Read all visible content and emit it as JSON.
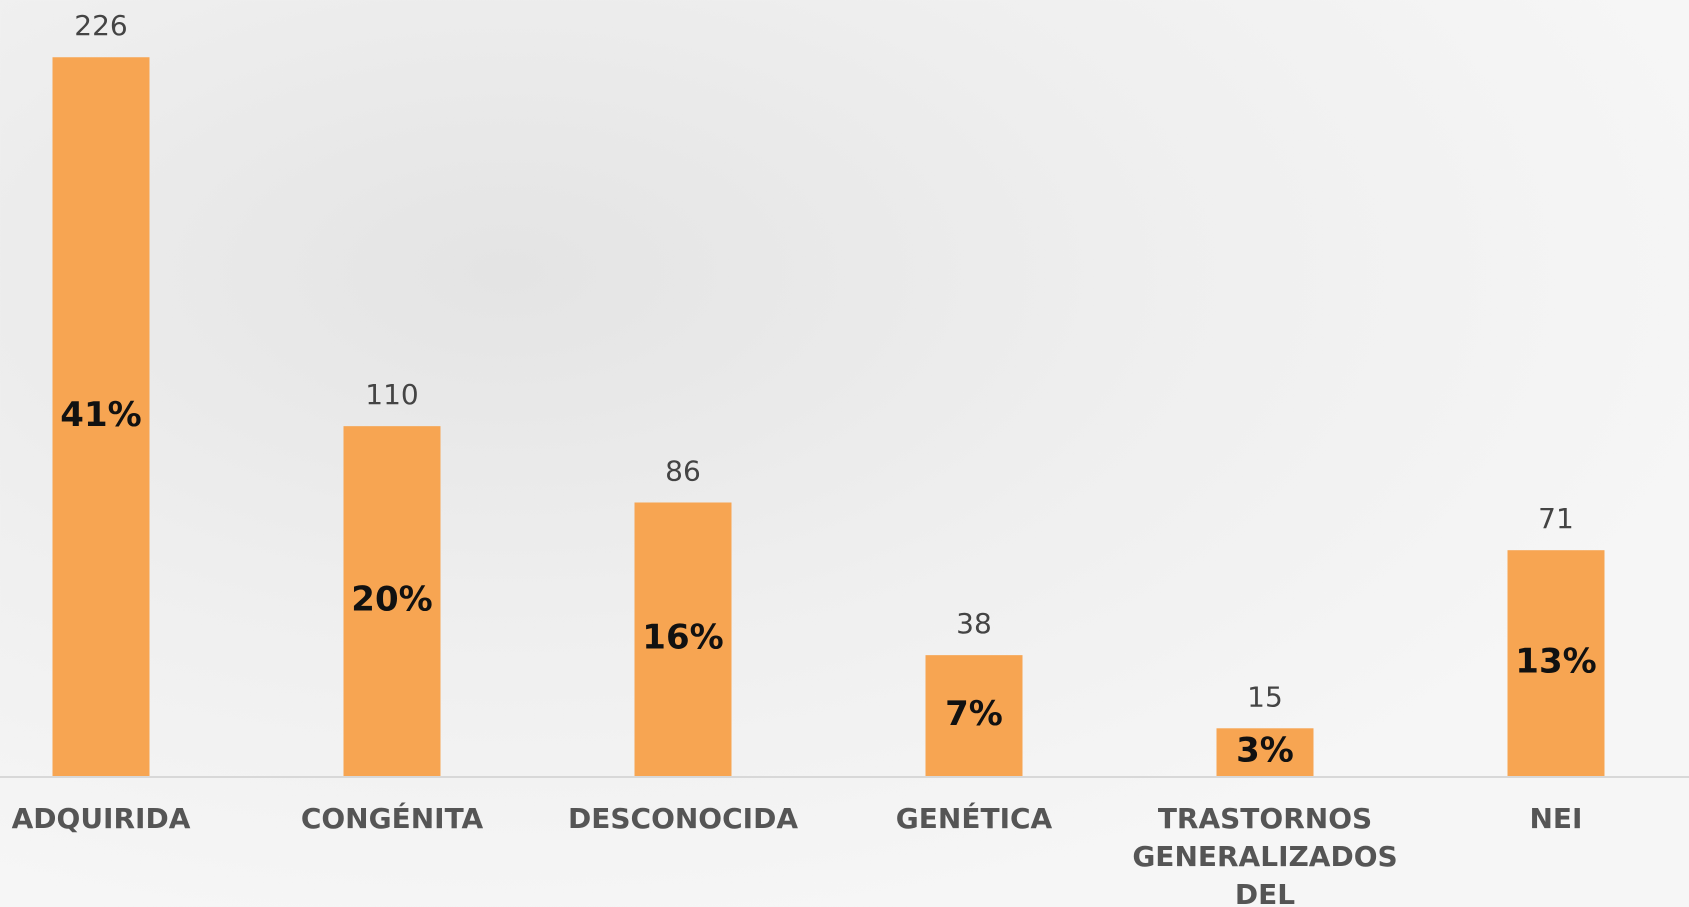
{
  "chart_data": {
    "type": "bar",
    "categories": [
      "ADQUIRIDA",
      "CONGÉNITA",
      "DESCONOCIDA",
      "GENÉTICA",
      "TRASTORNOS GENERALIZADOS DEL DESARROLLO",
      "NEI"
    ],
    "values": [
      226,
      110,
      86,
      38,
      15,
      71
    ],
    "percent_labels": [
      "41%",
      "20%",
      "16%",
      "7%",
      "3%",
      "13%"
    ],
    "color": "#f7a552",
    "ylim": [
      0,
      244
    ]
  }
}
